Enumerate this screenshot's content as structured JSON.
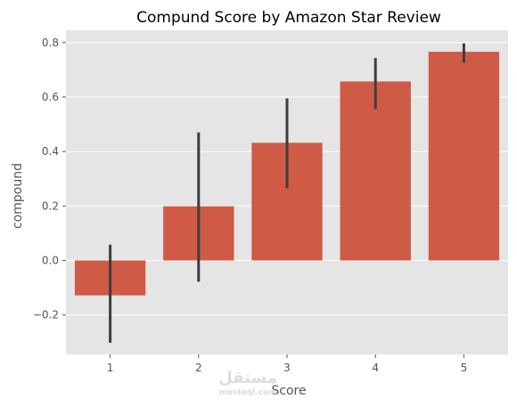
{
  "chart_data": {
    "type": "bar",
    "title": "Compund Score by Amazon Star Review",
    "xlabel": "Score",
    "ylabel": "compound",
    "categories": [
      "1",
      "2",
      "3",
      "4",
      "5"
    ],
    "values": [
      -0.128,
      0.199,
      0.432,
      0.657,
      0.766
    ],
    "error_low": [
      -0.302,
      -0.078,
      0.265,
      0.556,
      0.726
    ],
    "error_high": [
      0.058,
      0.47,
      0.595,
      0.743,
      0.797
    ],
    "ylim": [
      -0.345,
      0.845
    ],
    "yticks": [
      -0.2,
      0.0,
      0.2,
      0.4,
      0.6,
      0.8
    ],
    "ytick_labels": [
      "−0.2",
      "0.0",
      "0.2",
      "0.4",
      "0.6",
      "0.8"
    ],
    "grid": true,
    "colors": {
      "background": "#e5e5e5",
      "bar": "#cf5a45",
      "error_bar": "#3d3d3d",
      "grid": "#ffffff"
    }
  },
  "watermark": {
    "arabic": "مستقل",
    "latin": "mostaql.com"
  }
}
